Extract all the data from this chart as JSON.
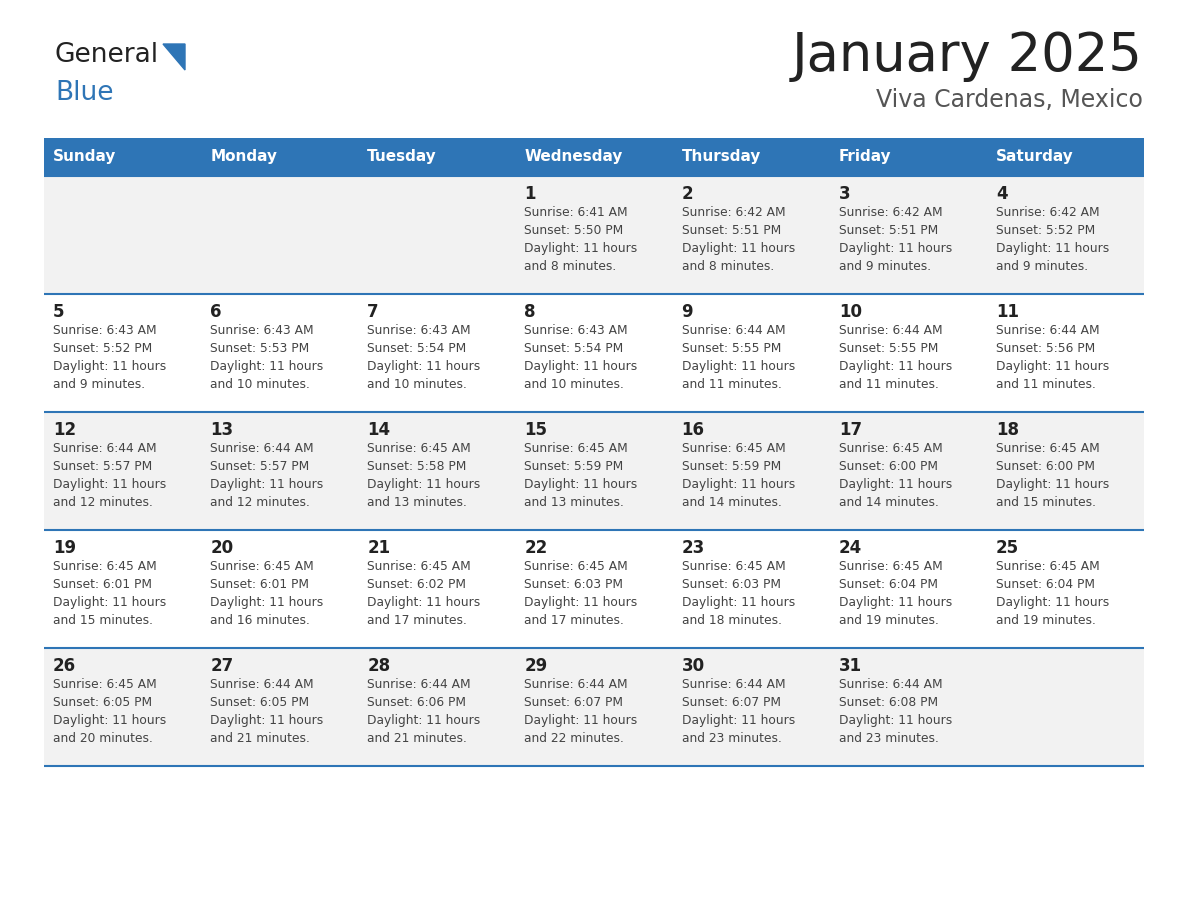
{
  "title": "January 2025",
  "subtitle": "Viva Cardenas, Mexico",
  "days_of_week": [
    "Sunday",
    "Monday",
    "Tuesday",
    "Wednesday",
    "Thursday",
    "Friday",
    "Saturday"
  ],
  "header_bg": "#2E75B6",
  "header_text": "#FFFFFF",
  "row_bg_odd": "#F2F2F2",
  "row_bg_even": "#FFFFFF",
  "border_color": "#2E75B6",
  "title_color": "#222222",
  "subtitle_color": "#555555",
  "day_number_color": "#222222",
  "cell_text_color": "#444444",
  "logo_general_color": "#222222",
  "logo_blue_color": "#2E75B6",
  "logo_triangle_color": "#2E75B6",
  "calendar_data": [
    [
      {
        "day": "",
        "sunrise": "",
        "sunset": "",
        "daylight_h": "",
        "daylight_m": ""
      },
      {
        "day": "",
        "sunrise": "",
        "sunset": "",
        "daylight_h": "",
        "daylight_m": ""
      },
      {
        "day": "",
        "sunrise": "",
        "sunset": "",
        "daylight_h": "",
        "daylight_m": ""
      },
      {
        "day": "1",
        "sunrise": "6:41 AM",
        "sunset": "5:50 PM",
        "daylight_h": "11",
        "daylight_m": "8"
      },
      {
        "day": "2",
        "sunrise": "6:42 AM",
        "sunset": "5:51 PM",
        "daylight_h": "11",
        "daylight_m": "8"
      },
      {
        "day": "3",
        "sunrise": "6:42 AM",
        "sunset": "5:51 PM",
        "daylight_h": "11",
        "daylight_m": "9"
      },
      {
        "day": "4",
        "sunrise": "6:42 AM",
        "sunset": "5:52 PM",
        "daylight_h": "11",
        "daylight_m": "9"
      }
    ],
    [
      {
        "day": "5",
        "sunrise": "6:43 AM",
        "sunset": "5:52 PM",
        "daylight_h": "11",
        "daylight_m": "9"
      },
      {
        "day": "6",
        "sunrise": "6:43 AM",
        "sunset": "5:53 PM",
        "daylight_h": "11",
        "daylight_m": "10"
      },
      {
        "day": "7",
        "sunrise": "6:43 AM",
        "sunset": "5:54 PM",
        "daylight_h": "11",
        "daylight_m": "10"
      },
      {
        "day": "8",
        "sunrise": "6:43 AM",
        "sunset": "5:54 PM",
        "daylight_h": "11",
        "daylight_m": "10"
      },
      {
        "day": "9",
        "sunrise": "6:44 AM",
        "sunset": "5:55 PM",
        "daylight_h": "11",
        "daylight_m": "11"
      },
      {
        "day": "10",
        "sunrise": "6:44 AM",
        "sunset": "5:55 PM",
        "daylight_h": "11",
        "daylight_m": "11"
      },
      {
        "day": "11",
        "sunrise": "6:44 AM",
        "sunset": "5:56 PM",
        "daylight_h": "11",
        "daylight_m": "11"
      }
    ],
    [
      {
        "day": "12",
        "sunrise": "6:44 AM",
        "sunset": "5:57 PM",
        "daylight_h": "11",
        "daylight_m": "12"
      },
      {
        "day": "13",
        "sunrise": "6:44 AM",
        "sunset": "5:57 PM",
        "daylight_h": "11",
        "daylight_m": "12"
      },
      {
        "day": "14",
        "sunrise": "6:45 AM",
        "sunset": "5:58 PM",
        "daylight_h": "11",
        "daylight_m": "13"
      },
      {
        "day": "15",
        "sunrise": "6:45 AM",
        "sunset": "5:59 PM",
        "daylight_h": "11",
        "daylight_m": "13"
      },
      {
        "day": "16",
        "sunrise": "6:45 AM",
        "sunset": "5:59 PM",
        "daylight_h": "11",
        "daylight_m": "14"
      },
      {
        "day": "17",
        "sunrise": "6:45 AM",
        "sunset": "6:00 PM",
        "daylight_h": "11",
        "daylight_m": "14"
      },
      {
        "day": "18",
        "sunrise": "6:45 AM",
        "sunset": "6:00 PM",
        "daylight_h": "11",
        "daylight_m": "15"
      }
    ],
    [
      {
        "day": "19",
        "sunrise": "6:45 AM",
        "sunset": "6:01 PM",
        "daylight_h": "11",
        "daylight_m": "15"
      },
      {
        "day": "20",
        "sunrise": "6:45 AM",
        "sunset": "6:01 PM",
        "daylight_h": "11",
        "daylight_m": "16"
      },
      {
        "day": "21",
        "sunrise": "6:45 AM",
        "sunset": "6:02 PM",
        "daylight_h": "11",
        "daylight_m": "17"
      },
      {
        "day": "22",
        "sunrise": "6:45 AM",
        "sunset": "6:03 PM",
        "daylight_h": "11",
        "daylight_m": "17"
      },
      {
        "day": "23",
        "sunrise": "6:45 AM",
        "sunset": "6:03 PM",
        "daylight_h": "11",
        "daylight_m": "18"
      },
      {
        "day": "24",
        "sunrise": "6:45 AM",
        "sunset": "6:04 PM",
        "daylight_h": "11",
        "daylight_m": "19"
      },
      {
        "day": "25",
        "sunrise": "6:45 AM",
        "sunset": "6:04 PM",
        "daylight_h": "11",
        "daylight_m": "19"
      }
    ],
    [
      {
        "day": "26",
        "sunrise": "6:45 AM",
        "sunset": "6:05 PM",
        "daylight_h": "11",
        "daylight_m": "20"
      },
      {
        "day": "27",
        "sunrise": "6:44 AM",
        "sunset": "6:05 PM",
        "daylight_h": "11",
        "daylight_m": "21"
      },
      {
        "day": "28",
        "sunrise": "6:44 AM",
        "sunset": "6:06 PM",
        "daylight_h": "11",
        "daylight_m": "21"
      },
      {
        "day": "29",
        "sunrise": "6:44 AM",
        "sunset": "6:07 PM",
        "daylight_h": "11",
        "daylight_m": "22"
      },
      {
        "day": "30",
        "sunrise": "6:44 AM",
        "sunset": "6:07 PM",
        "daylight_h": "11",
        "daylight_m": "23"
      },
      {
        "day": "31",
        "sunrise": "6:44 AM",
        "sunset": "6:08 PM",
        "daylight_h": "11",
        "daylight_m": "23"
      },
      {
        "day": "",
        "sunrise": "",
        "sunset": "",
        "daylight_h": "",
        "daylight_m": ""
      }
    ]
  ]
}
